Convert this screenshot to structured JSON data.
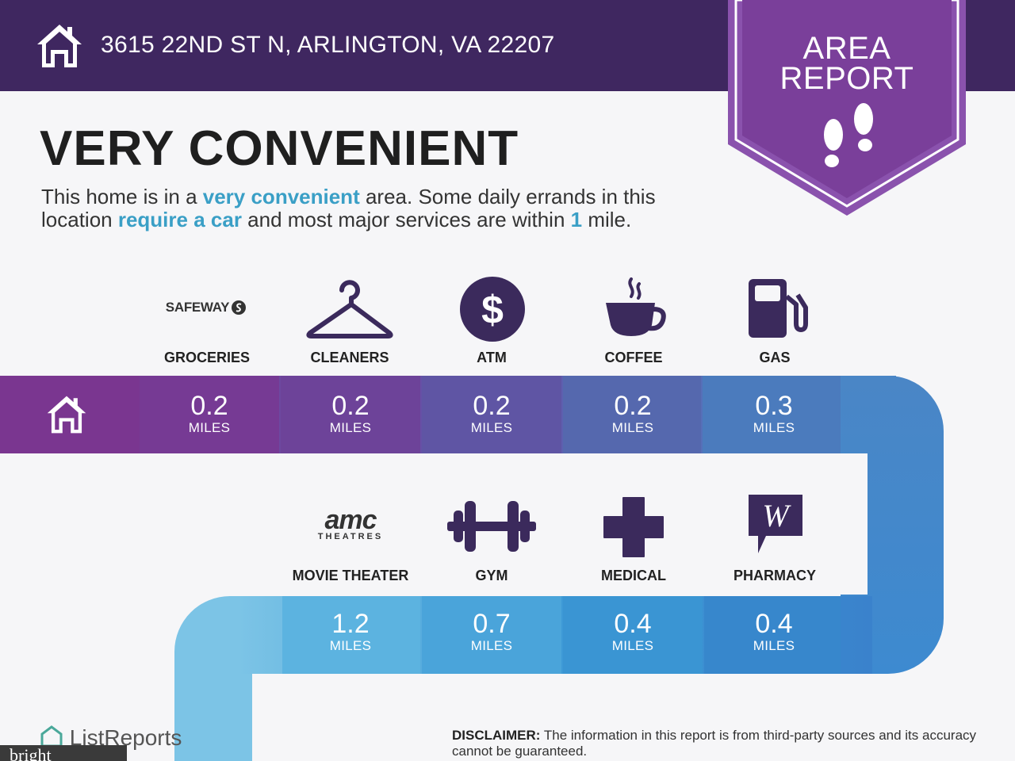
{
  "header": {
    "address": "3615 22ND ST N, ARLINGTON, VA 22207",
    "badge_line1": "AREA",
    "badge_line2": "REPORT",
    "icons": [
      "house-icon",
      "footprints-icon"
    ]
  },
  "summary": {
    "headline": "VERY CONVENIENT",
    "desc_1": "This home is in a ",
    "desc_hl_1": "very convenient",
    "desc_2": " area. Some daily errands in this location ",
    "desc_hl_2": "require a car",
    "desc_3": " and most major services are within ",
    "desc_hl_3": "1",
    "desc_4": " mile."
  },
  "row1": [
    {
      "label": "GROCERIES",
      "logo": "SAFEWAY",
      "icon": "safeway-logo",
      "distance": "0.2",
      "unit": "MILES"
    },
    {
      "label": "CLEANERS",
      "icon": "hanger-icon",
      "distance": "0.2",
      "unit": "MILES"
    },
    {
      "label": "ATM",
      "icon": "dollar-icon",
      "distance": "0.2",
      "unit": "MILES"
    },
    {
      "label": "COFFEE",
      "icon": "coffee-cup-icon",
      "distance": "0.2",
      "unit": "MILES"
    },
    {
      "label": "GAS",
      "icon": "gas-pump-icon",
      "distance": "0.3",
      "unit": "MILES"
    }
  ],
  "row2": [
    {
      "label": "MOVIE THEATER",
      "logo": "amc",
      "logo_sub": "THEATRES",
      "icon": "amc-logo",
      "distance": "1.2",
      "unit": "MILES"
    },
    {
      "label": "GYM",
      "icon": "dumbbell-icon",
      "distance": "0.7",
      "unit": "MILES"
    },
    {
      "label": "MEDICAL",
      "icon": "medical-cross-icon",
      "distance": "0.4",
      "unit": "MILES"
    },
    {
      "label": "PHARMACY",
      "icon": "walgreens-logo",
      "distance": "0.4",
      "unit": "MILES"
    }
  ],
  "footer": {
    "brand": "ListReports",
    "brand2": "bright",
    "disclaimer_label": "DISCLAIMER:",
    "disclaimer_text": " The information in this report is from third-party sources and its accuracy cannot be guaranteed."
  },
  "colors": {
    "header_bg": "#3f2760",
    "badge_purple": "#7a3f9a",
    "highlight": "#3a9fc6",
    "icon_purple": "#3b2a5c"
  }
}
